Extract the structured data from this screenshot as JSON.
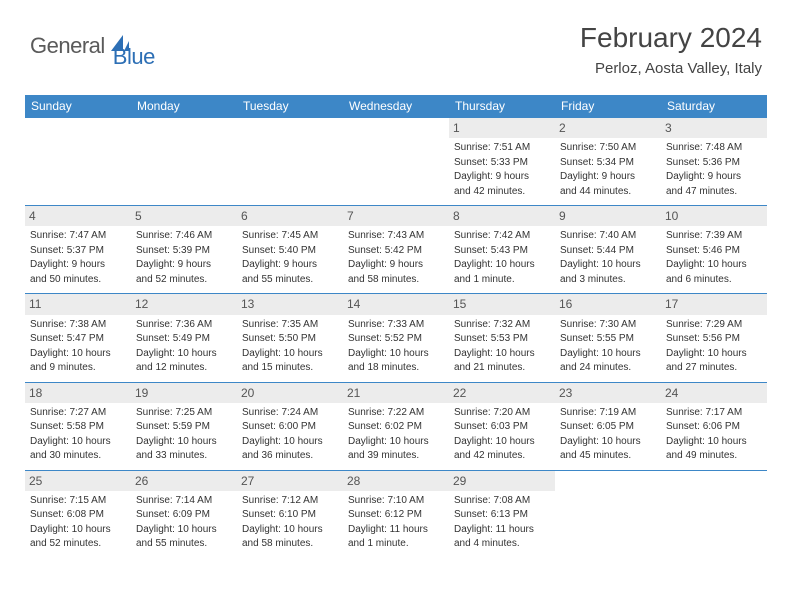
{
  "logo": {
    "general": "General",
    "blue": "Blue"
  },
  "title": "February 2024",
  "location": "Perloz, Aosta Valley, Italy",
  "colors": {
    "header_bg": "#3d87c7",
    "header_text": "#ffffff",
    "daynum_bg": "#ececec",
    "row_border": "#3d87c7",
    "logo_general": "#5a5a5a",
    "logo_blue": "#2d6fb5"
  },
  "dow": [
    "Sunday",
    "Monday",
    "Tuesday",
    "Wednesday",
    "Thursday",
    "Friday",
    "Saturday"
  ],
  "weeks": [
    [
      null,
      null,
      null,
      null,
      {
        "n": "1",
        "sunrise": "Sunrise: 7:51 AM",
        "sunset": "Sunset: 5:33 PM",
        "day1": "Daylight: 9 hours",
        "day2": "and 42 minutes."
      },
      {
        "n": "2",
        "sunrise": "Sunrise: 7:50 AM",
        "sunset": "Sunset: 5:34 PM",
        "day1": "Daylight: 9 hours",
        "day2": "and 44 minutes."
      },
      {
        "n": "3",
        "sunrise": "Sunrise: 7:48 AM",
        "sunset": "Sunset: 5:36 PM",
        "day1": "Daylight: 9 hours",
        "day2": "and 47 minutes."
      }
    ],
    [
      {
        "n": "4",
        "sunrise": "Sunrise: 7:47 AM",
        "sunset": "Sunset: 5:37 PM",
        "day1": "Daylight: 9 hours",
        "day2": "and 50 minutes."
      },
      {
        "n": "5",
        "sunrise": "Sunrise: 7:46 AM",
        "sunset": "Sunset: 5:39 PM",
        "day1": "Daylight: 9 hours",
        "day2": "and 52 minutes."
      },
      {
        "n": "6",
        "sunrise": "Sunrise: 7:45 AM",
        "sunset": "Sunset: 5:40 PM",
        "day1": "Daylight: 9 hours",
        "day2": "and 55 minutes."
      },
      {
        "n": "7",
        "sunrise": "Sunrise: 7:43 AM",
        "sunset": "Sunset: 5:42 PM",
        "day1": "Daylight: 9 hours",
        "day2": "and 58 minutes."
      },
      {
        "n": "8",
        "sunrise": "Sunrise: 7:42 AM",
        "sunset": "Sunset: 5:43 PM",
        "day1": "Daylight: 10 hours",
        "day2": "and 1 minute."
      },
      {
        "n": "9",
        "sunrise": "Sunrise: 7:40 AM",
        "sunset": "Sunset: 5:44 PM",
        "day1": "Daylight: 10 hours",
        "day2": "and 3 minutes."
      },
      {
        "n": "10",
        "sunrise": "Sunrise: 7:39 AM",
        "sunset": "Sunset: 5:46 PM",
        "day1": "Daylight: 10 hours",
        "day2": "and 6 minutes."
      }
    ],
    [
      {
        "n": "11",
        "sunrise": "Sunrise: 7:38 AM",
        "sunset": "Sunset: 5:47 PM",
        "day1": "Daylight: 10 hours",
        "day2": "and 9 minutes."
      },
      {
        "n": "12",
        "sunrise": "Sunrise: 7:36 AM",
        "sunset": "Sunset: 5:49 PM",
        "day1": "Daylight: 10 hours",
        "day2": "and 12 minutes."
      },
      {
        "n": "13",
        "sunrise": "Sunrise: 7:35 AM",
        "sunset": "Sunset: 5:50 PM",
        "day1": "Daylight: 10 hours",
        "day2": "and 15 minutes."
      },
      {
        "n": "14",
        "sunrise": "Sunrise: 7:33 AM",
        "sunset": "Sunset: 5:52 PM",
        "day1": "Daylight: 10 hours",
        "day2": "and 18 minutes."
      },
      {
        "n": "15",
        "sunrise": "Sunrise: 7:32 AM",
        "sunset": "Sunset: 5:53 PM",
        "day1": "Daylight: 10 hours",
        "day2": "and 21 minutes."
      },
      {
        "n": "16",
        "sunrise": "Sunrise: 7:30 AM",
        "sunset": "Sunset: 5:55 PM",
        "day1": "Daylight: 10 hours",
        "day2": "and 24 minutes."
      },
      {
        "n": "17",
        "sunrise": "Sunrise: 7:29 AM",
        "sunset": "Sunset: 5:56 PM",
        "day1": "Daylight: 10 hours",
        "day2": "and 27 minutes."
      }
    ],
    [
      {
        "n": "18",
        "sunrise": "Sunrise: 7:27 AM",
        "sunset": "Sunset: 5:58 PM",
        "day1": "Daylight: 10 hours",
        "day2": "and 30 minutes."
      },
      {
        "n": "19",
        "sunrise": "Sunrise: 7:25 AM",
        "sunset": "Sunset: 5:59 PM",
        "day1": "Daylight: 10 hours",
        "day2": "and 33 minutes."
      },
      {
        "n": "20",
        "sunrise": "Sunrise: 7:24 AM",
        "sunset": "Sunset: 6:00 PM",
        "day1": "Daylight: 10 hours",
        "day2": "and 36 minutes."
      },
      {
        "n": "21",
        "sunrise": "Sunrise: 7:22 AM",
        "sunset": "Sunset: 6:02 PM",
        "day1": "Daylight: 10 hours",
        "day2": "and 39 minutes."
      },
      {
        "n": "22",
        "sunrise": "Sunrise: 7:20 AM",
        "sunset": "Sunset: 6:03 PM",
        "day1": "Daylight: 10 hours",
        "day2": "and 42 minutes."
      },
      {
        "n": "23",
        "sunrise": "Sunrise: 7:19 AM",
        "sunset": "Sunset: 6:05 PM",
        "day1": "Daylight: 10 hours",
        "day2": "and 45 minutes."
      },
      {
        "n": "24",
        "sunrise": "Sunrise: 7:17 AM",
        "sunset": "Sunset: 6:06 PM",
        "day1": "Daylight: 10 hours",
        "day2": "and 49 minutes."
      }
    ],
    [
      {
        "n": "25",
        "sunrise": "Sunrise: 7:15 AM",
        "sunset": "Sunset: 6:08 PM",
        "day1": "Daylight: 10 hours",
        "day2": "and 52 minutes."
      },
      {
        "n": "26",
        "sunrise": "Sunrise: 7:14 AM",
        "sunset": "Sunset: 6:09 PM",
        "day1": "Daylight: 10 hours",
        "day2": "and 55 minutes."
      },
      {
        "n": "27",
        "sunrise": "Sunrise: 7:12 AM",
        "sunset": "Sunset: 6:10 PM",
        "day1": "Daylight: 10 hours",
        "day2": "and 58 minutes."
      },
      {
        "n": "28",
        "sunrise": "Sunrise: 7:10 AM",
        "sunset": "Sunset: 6:12 PM",
        "day1": "Daylight: 11 hours",
        "day2": "and 1 minute."
      },
      {
        "n": "29",
        "sunrise": "Sunrise: 7:08 AM",
        "sunset": "Sunset: 6:13 PM",
        "day1": "Daylight: 11 hours",
        "day2": "and 4 minutes."
      },
      null,
      null
    ]
  ]
}
